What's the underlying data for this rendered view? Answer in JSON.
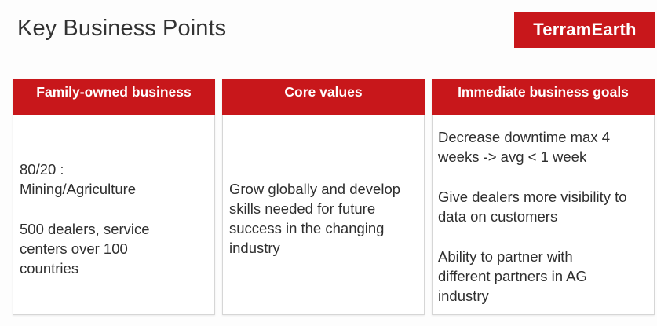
{
  "slide": {
    "title": "Key Business Points",
    "logo_text": "TerramEarth"
  },
  "colors": {
    "accent": "#c8171b",
    "header_text": "#ffffff",
    "body_text": "#2f2f2f"
  },
  "columns": [
    {
      "header": "Family-owned business",
      "paragraphs": [
        "80/20 : Mining/Agriculture",
        "500 dealers, service centers over 100 countries"
      ]
    },
    {
      "header": "Core values",
      "paragraphs": [
        "Grow globally and develop skills needed for future success in the changing industry"
      ]
    },
    {
      "header": "Immediate business goals",
      "paragraphs": [
        "Decrease downtime max 4 weeks -> avg < 1 week",
        "Give dealers more visibility to data on customers",
        "Ability to partner with different partners in AG industry"
      ]
    }
  ]
}
